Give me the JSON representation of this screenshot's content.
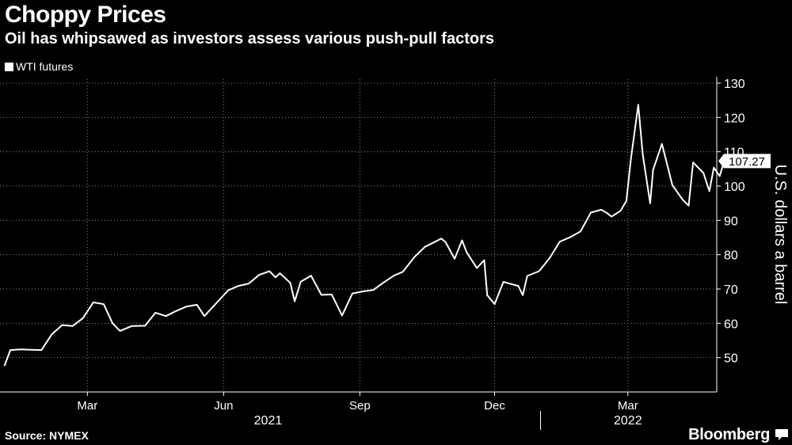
{
  "header": {
    "title": "Choppy Prices",
    "subtitle": "Oil has whipsawed as investors assess various push-pull factors"
  },
  "footer": {
    "source": "Source: NYMEX",
    "brand": "Bloomberg"
  },
  "colors": {
    "background": "#000000",
    "line": "#ffffff",
    "grid": "#8a8a8a"
  },
  "chart_data": {
    "type": "line",
    "title": "Choppy Prices",
    "subtitle": "Oil has whipsawed as investors assess various push-pull factors",
    "xlabel": "",
    "ylabel": "U.S. dollars a barrel",
    "ylim": [
      40,
      130
    ],
    "yticks": [
      50,
      60,
      70,
      80,
      90,
      100,
      110,
      120,
      130
    ],
    "xlim": [
      "2021-01-01",
      "2022-04-30"
    ],
    "xticks": [
      {
        "date": "2021-03-01",
        "label": "Mar"
      },
      {
        "date": "2021-06-01",
        "label": "Jun"
      },
      {
        "date": "2021-09-01",
        "label": "Sep"
      },
      {
        "date": "2021-12-01",
        "label": "Dec"
      },
      {
        "date": "2022-03-01",
        "label": "Mar"
      }
    ],
    "year_labels": [
      {
        "label": "2021",
        "date": "2021-07-01"
      },
      {
        "label": "2022",
        "date": "2022-03-01"
      }
    ],
    "year_separator": "2022-01-01",
    "grid": true,
    "legend": "top-left",
    "last_value_label": "107.27",
    "series": [
      {
        "name": "WTI futures",
        "points": [
          [
            "2021-01-04",
            47.6
          ],
          [
            "2021-01-08",
            52.2
          ],
          [
            "2021-01-15",
            52.4
          ],
          [
            "2021-01-22",
            52.3
          ],
          [
            "2021-01-29",
            52.2
          ],
          [
            "2021-02-05",
            56.8
          ],
          [
            "2021-02-12",
            59.5
          ],
          [
            "2021-02-19",
            59.2
          ],
          [
            "2021-02-26",
            61.5
          ],
          [
            "2021-03-05",
            66.1
          ],
          [
            "2021-03-12",
            65.6
          ],
          [
            "2021-03-18",
            60.0
          ],
          [
            "2021-03-23",
            57.8
          ],
          [
            "2021-03-31",
            59.2
          ],
          [
            "2021-04-09",
            59.3
          ],
          [
            "2021-04-16",
            63.1
          ],
          [
            "2021-04-23",
            62.1
          ],
          [
            "2021-04-30",
            63.6
          ],
          [
            "2021-05-07",
            64.9
          ],
          [
            "2021-05-14",
            65.4
          ],
          [
            "2021-05-19",
            62.1
          ],
          [
            "2021-05-28",
            66.3
          ],
          [
            "2021-06-04",
            69.6
          ],
          [
            "2021-06-11",
            70.9
          ],
          [
            "2021-06-18",
            71.6
          ],
          [
            "2021-06-25",
            74.1
          ],
          [
            "2021-07-02",
            75.2
          ],
          [
            "2021-07-06",
            73.4
          ],
          [
            "2021-07-09",
            74.6
          ],
          [
            "2021-07-16",
            71.8
          ],
          [
            "2021-07-19",
            66.4
          ],
          [
            "2021-07-23",
            72.1
          ],
          [
            "2021-07-30",
            73.9
          ],
          [
            "2021-08-06",
            68.3
          ],
          [
            "2021-08-13",
            68.4
          ],
          [
            "2021-08-20",
            62.3
          ],
          [
            "2021-08-27",
            68.7
          ],
          [
            "2021-09-03",
            69.3
          ],
          [
            "2021-09-10",
            69.7
          ],
          [
            "2021-09-17",
            71.9
          ],
          [
            "2021-09-24",
            73.9
          ],
          [
            "2021-09-30",
            75.0
          ],
          [
            "2021-10-08",
            79.4
          ],
          [
            "2021-10-15",
            82.3
          ],
          [
            "2021-10-22",
            83.8
          ],
          [
            "2021-10-26",
            84.7
          ],
          [
            "2021-10-29",
            83.6
          ],
          [
            "2021-11-04",
            78.8
          ],
          [
            "2021-11-09",
            84.2
          ],
          [
            "2021-11-12",
            80.8
          ],
          [
            "2021-11-19",
            76.1
          ],
          [
            "2021-11-24",
            78.4
          ],
          [
            "2021-11-26",
            68.2
          ],
          [
            "2021-12-01",
            65.6
          ],
          [
            "2021-12-07",
            72.1
          ],
          [
            "2021-12-10",
            71.7
          ],
          [
            "2021-12-17",
            70.9
          ],
          [
            "2021-12-20",
            68.2
          ],
          [
            "2021-12-23",
            73.8
          ],
          [
            "2021-12-31",
            75.2
          ],
          [
            "2022-01-07",
            78.9
          ],
          [
            "2022-01-14",
            83.8
          ],
          [
            "2022-01-21",
            85.1
          ],
          [
            "2022-01-28",
            86.8
          ],
          [
            "2022-02-04",
            92.3
          ],
          [
            "2022-02-11",
            93.1
          ],
          [
            "2022-02-15",
            92.1
          ],
          [
            "2022-02-18",
            91.1
          ],
          [
            "2022-02-24",
            92.8
          ],
          [
            "2022-02-28",
            95.7
          ],
          [
            "2022-03-03",
            107.7
          ],
          [
            "2022-03-08",
            123.7
          ],
          [
            "2022-03-11",
            109.3
          ],
          [
            "2022-03-16",
            95.0
          ],
          [
            "2022-03-18",
            104.7
          ],
          [
            "2022-03-24",
            112.3
          ],
          [
            "2022-03-31",
            100.3
          ],
          [
            "2022-04-07",
            96.0
          ],
          [
            "2022-04-11",
            94.3
          ],
          [
            "2022-04-14",
            106.9
          ],
          [
            "2022-04-21",
            103.8
          ],
          [
            "2022-04-25",
            98.5
          ],
          [
            "2022-04-28",
            105.4
          ],
          [
            "2022-05-02",
            102.9
          ],
          [
            "2022-05-05",
            107.3
          ]
        ]
      }
    ]
  }
}
